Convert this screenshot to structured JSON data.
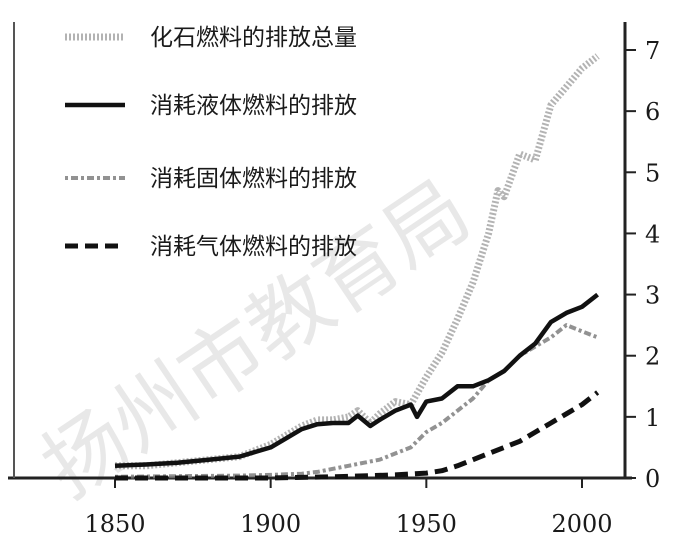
{
  "watermark": "扬州市教育局",
  "chart_data": {
    "type": "line",
    "title": "",
    "xlabel": "",
    "ylabel": "",
    "xlim": [
      1850,
      2010
    ],
    "ylim": [
      0,
      7.4
    ],
    "xticks": [
      1850,
      1900,
      1950,
      2000
    ],
    "yticks": [
      0,
      1,
      2,
      3,
      4,
      5,
      6,
      7
    ],
    "y_axis_side": "right",
    "grid": false,
    "legend_position": "top-left",
    "series": [
      {
        "name": "化石燃料的排放总量",
        "color": "#9a9a9a",
        "style": "speckled",
        "x": [
          1850,
          1860,
          1870,
          1880,
          1890,
          1900,
          1905,
          1910,
          1915,
          1920,
          1925,
          1928,
          1932,
          1935,
          1940,
          1945,
          1950,
          1955,
          1960,
          1965,
          1970,
          1973,
          1975,
          1980,
          1985,
          1990,
          1995,
          2000,
          2005
        ],
        "y": [
          0.2,
          0.2,
          0.25,
          0.3,
          0.35,
          0.55,
          0.7,
          0.85,
          0.95,
          0.95,
          1.0,
          1.1,
          0.9,
          1.05,
          1.25,
          1.2,
          1.65,
          2.05,
          2.6,
          3.2,
          4.0,
          4.7,
          4.6,
          5.3,
          5.2,
          6.1,
          6.4,
          6.7,
          6.9
        ]
      },
      {
        "name": "消耗液体燃料的排放",
        "color": "#111111",
        "style": "solid",
        "x": [
          1850,
          1860,
          1870,
          1880,
          1890,
          1900,
          1905,
          1910,
          1915,
          1920,
          1925,
          1928,
          1932,
          1935,
          1940,
          1945,
          1947,
          1950,
          1955,
          1960,
          1965,
          1970,
          1975,
          1980,
          1985,
          1990,
          1995,
          2000,
          2005
        ],
        "y": [
          0.2,
          0.22,
          0.25,
          0.3,
          0.35,
          0.5,
          0.65,
          0.8,
          0.88,
          0.9,
          0.9,
          1.02,
          0.85,
          0.95,
          1.1,
          1.2,
          1.0,
          1.25,
          1.3,
          1.5,
          1.5,
          1.6,
          1.75,
          2.0,
          2.2,
          2.55,
          2.7,
          2.8,
          3.0
        ]
      },
      {
        "name": "消耗固体燃料的排放",
        "color": "#777777",
        "style": "dotted-dash",
        "x": [
          1850,
          1870,
          1890,
          1900,
          1905,
          1910,
          1915,
          1920,
          1925,
          1930,
          1935,
          1940,
          1945,
          1950,
          1955,
          1960,
          1965,
          1970,
          1975,
          1980,
          1985,
          1990,
          1995,
          2000,
          2005
        ],
        "y": [
          0.02,
          0.03,
          0.04,
          0.05,
          0.06,
          0.07,
          0.1,
          0.15,
          0.2,
          0.25,
          0.3,
          0.4,
          0.5,
          0.75,
          0.9,
          1.1,
          1.3,
          1.6,
          1.75,
          2.0,
          2.15,
          2.3,
          2.5,
          2.4,
          2.3
        ]
      },
      {
        "name": "消耗气体燃料的排放",
        "color": "#111111",
        "style": "dashed",
        "x": [
          1850,
          1900,
          1920,
          1940,
          1950,
          1955,
          1960,
          1965,
          1970,
          1975,
          1980,
          1985,
          1990,
          1995,
          2000,
          2005
        ],
        "y": [
          0.0,
          0.0,
          0.02,
          0.05,
          0.08,
          0.12,
          0.2,
          0.3,
          0.4,
          0.5,
          0.6,
          0.75,
          0.9,
          1.05,
          1.2,
          1.4
        ]
      }
    ]
  }
}
